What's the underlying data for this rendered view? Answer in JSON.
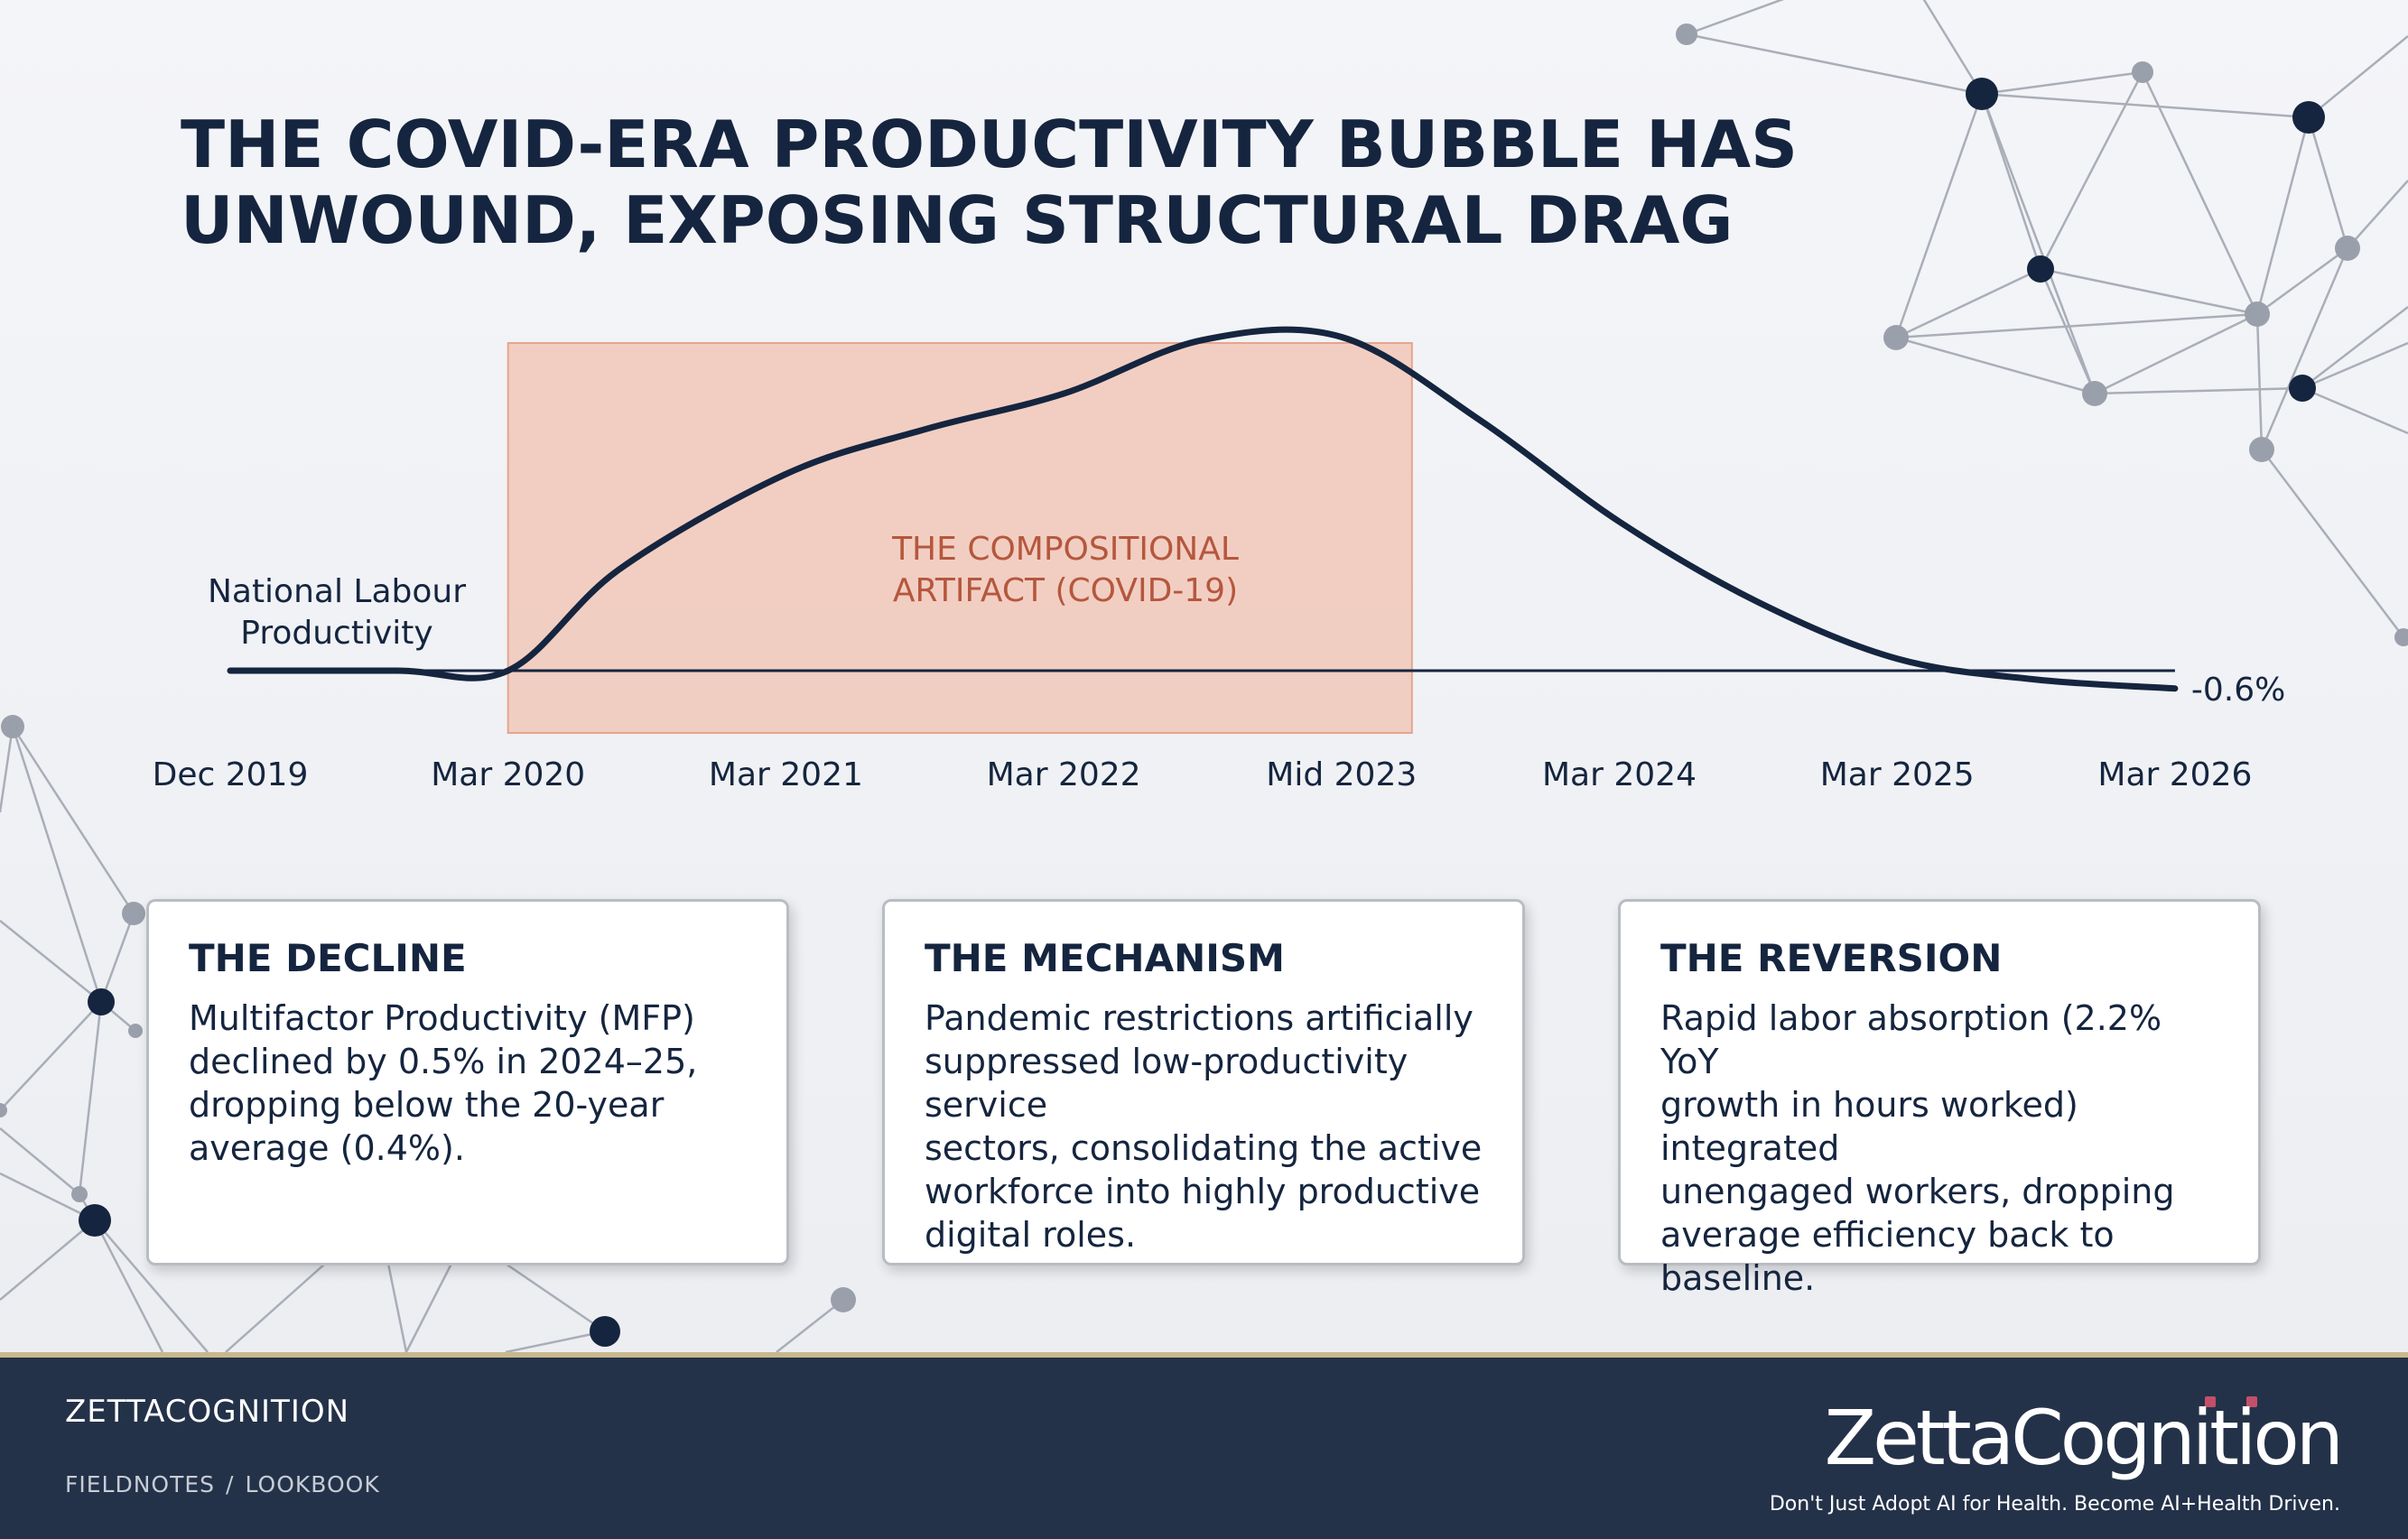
{
  "title": {
    "line1": "THE COVID-ERA PRODUCTIVITY BUBBLE HAS",
    "line2": "UNWOUND, EXPOSING STRUCTURAL DRAG"
  },
  "chart_data": {
    "type": "line",
    "title": "",
    "xlabel": "",
    "ylabel": "",
    "categories": [
      "Dec 2019",
      "Mar 2020",
      "Mar 2021",
      "Mar 2022",
      "Mid 2023",
      "Mar 2024",
      "Mar 2025",
      "Mar 2026"
    ],
    "series": [
      {
        "name": "National Labour Productivity",
        "color": "#15253f",
        "x": [
          0,
          0.6,
          1,
          1.4,
          2,
          2.5,
          3,
          3.5,
          4,
          4.5,
          5,
          5.5,
          6,
          6.5,
          7
        ],
        "values": [
          0,
          0,
          0,
          3.4,
          6.6,
          8.1,
          9.3,
          11.1,
          11.2,
          8.4,
          5.0,
          2.3,
          0.4,
          -0.3,
          -0.6
        ]
      }
    ],
    "baseline": 0,
    "end_label": "-0.6%",
    "ylim": [
      -1,
      13
    ],
    "shaded_region": {
      "label_line1": "THE COMPOSITIONAL",
      "label_line2": "ARTIFACT (COVID-19)",
      "from": "Mar 2020",
      "to": "Mid 2023",
      "fill": "#f1c2b0",
      "stroke": "#e5a58d",
      "label_color": "#b5573d"
    },
    "grid": false,
    "legend": "none"
  },
  "cards": [
    {
      "title": "THE DECLINE",
      "lines": [
        "Multifactor Productivity (MFP)",
        "declined by 0.5% in 2024–25,",
        "dropping below the 20-year",
        "average (0.4%)."
      ]
    },
    {
      "title": "THE MECHANISM",
      "lines": [
        "Pandemic restrictions artificially",
        "suppressed low-productivity service",
        "sectors, consolidating the active",
        "workforce into highly productive",
        "digital roles."
      ]
    },
    {
      "title": "THE REVERSION",
      "lines": [
        "Rapid labor absorption (2.2% YoY",
        "growth in hours worked) integrated",
        "unengaged workers, dropping",
        "average efficiency back to baseline."
      ]
    }
  ],
  "footer": {
    "brand": "ZETTACOGNITION",
    "crumbs": [
      "FIELDNOTES",
      "LOOKBOOK"
    ],
    "logo_text": "ZettaCognition",
    "tagline": "Don't Just Adopt AI for Health. Become AI+Health Driven."
  },
  "colors": {
    "navy": "#15253f",
    "footer_bg": "#243249",
    "footer_rule": "#c9b78d",
    "network_node": "#9aa0ab"
  }
}
